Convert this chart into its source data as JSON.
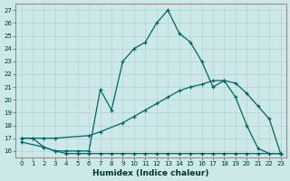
{
  "xlabel": "Humidex (Indice chaleur)",
  "bg_color": "#cce8e8",
  "grid_color": "#aacccc",
  "line_color": "#006666",
  "xlim": [
    -0.5,
    23.5
  ],
  "ylim": [
    15.5,
    27.5
  ],
  "xticks": [
    0,
    1,
    2,
    3,
    4,
    5,
    6,
    7,
    8,
    9,
    10,
    11,
    12,
    13,
    14,
    15,
    16,
    17,
    18,
    19,
    20,
    21,
    22,
    23
  ],
  "yticks": [
    16,
    17,
    18,
    19,
    20,
    21,
    22,
    23,
    24,
    25,
    26,
    27
  ],
  "line1_x": [
    0,
    1,
    2,
    3,
    4,
    5,
    6,
    7,
    8,
    9,
    10,
    11,
    12,
    13,
    14,
    15,
    16,
    17,
    18,
    19,
    20,
    21,
    22,
    23
  ],
  "line1_y": [
    17,
    17,
    16.3,
    16,
    16,
    16,
    16,
    20.8,
    19.2,
    23,
    24,
    24.5,
    26,
    27,
    25.2,
    24.5,
    23,
    21,
    21.5,
    20.2,
    18,
    16.2,
    15.8,
    15.8
  ],
  "line2_x": [
    0,
    2,
    3,
    6,
    7,
    9,
    10,
    11,
    12,
    13,
    14,
    15,
    16,
    17,
    18,
    19,
    20,
    21,
    22,
    23
  ],
  "line2_y": [
    17,
    17,
    17,
    17.2,
    17.5,
    18.2,
    18.7,
    19.2,
    19.7,
    20.2,
    20.7,
    21,
    21.2,
    21.5,
    21.5,
    21.3,
    20.5,
    19.5,
    18.5,
    15.8
  ],
  "line3_x": [
    0,
    2,
    3,
    4,
    5,
    6,
    7,
    8,
    9,
    10,
    11,
    12,
    13,
    14,
    15,
    16,
    17,
    18,
    19,
    20,
    21,
    23
  ],
  "line3_y": [
    16.7,
    16.3,
    16,
    15.8,
    15.8,
    15.8,
    15.8,
    15.8,
    15.8,
    15.8,
    15.8,
    15.8,
    15.8,
    15.8,
    15.8,
    15.8,
    15.8,
    15.8,
    15.8,
    15.8,
    15.8,
    15.8
  ]
}
